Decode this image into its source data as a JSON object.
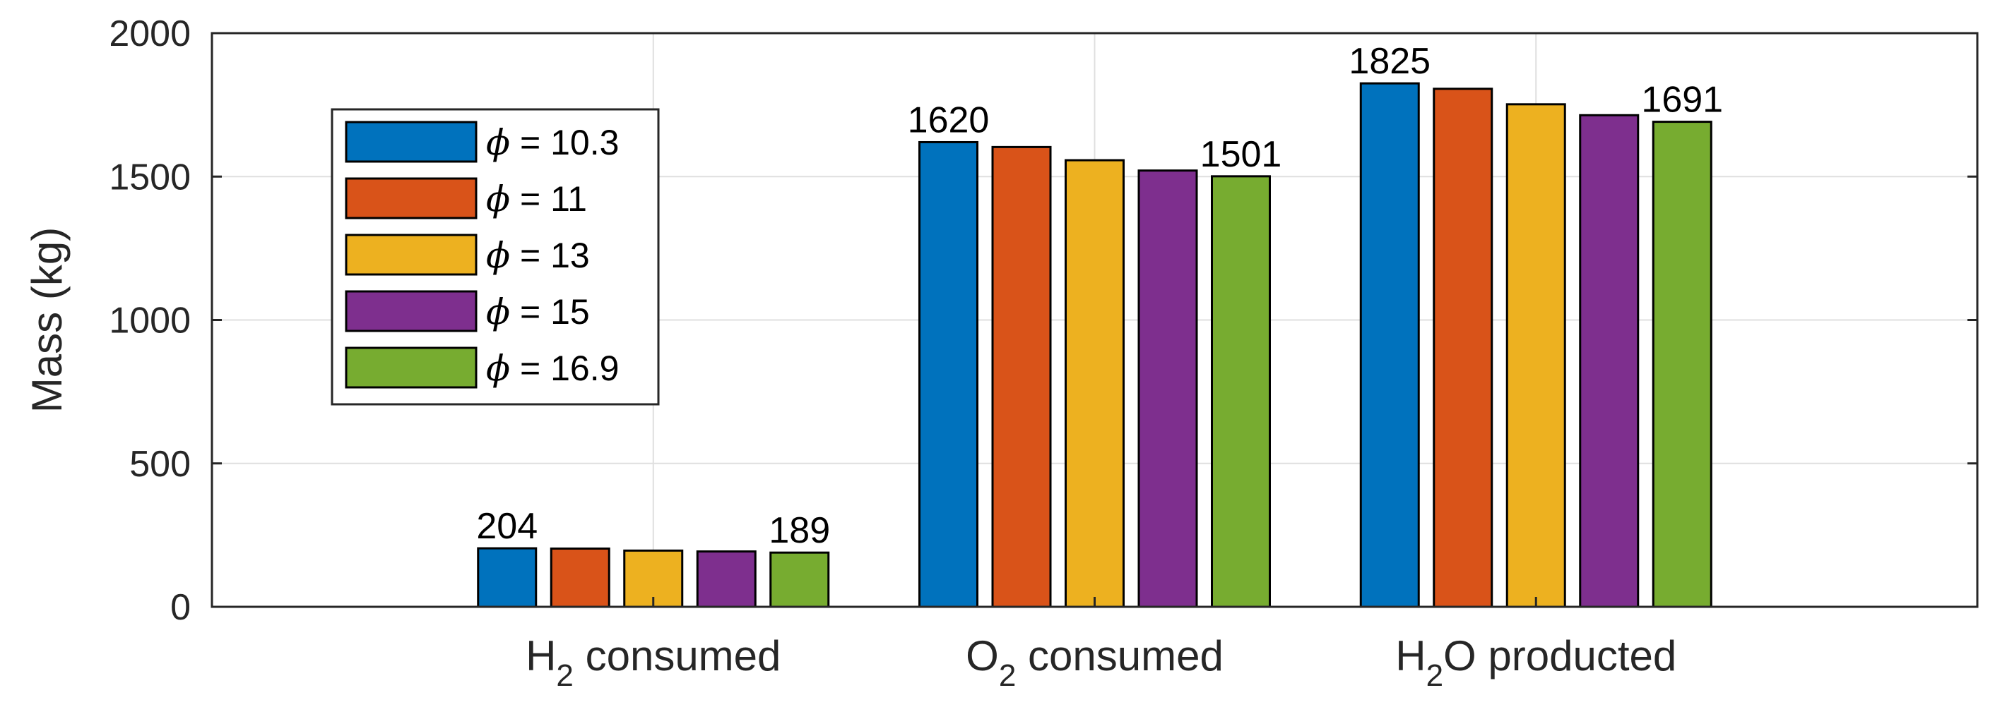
{
  "chart_data": {
    "type": "bar",
    "categories": [
      {
        "base": "H",
        "sub": "2",
        "rest": " consumed"
      },
      {
        "base": "O",
        "sub": "2",
        "rest": " consumed"
      },
      {
        "base": "H",
        "sub": "2",
        "rest": "O producted"
      }
    ],
    "series": [
      {
        "name": "ϕ = 10.3",
        "symbol": "ϕ",
        "label": " = 10.3",
        "color": "#0072BD",
        "values": [
          204,
          1620,
          1825
        ]
      },
      {
        "name": "ϕ = 11",
        "symbol": "ϕ",
        "label": " = 11",
        "color": "#D95319",
        "values": [
          203,
          1603,
          1806
        ]
      },
      {
        "name": "ϕ = 13",
        "symbol": "ϕ",
        "label": " = 13",
        "color": "#EDB120",
        "values": [
          196,
          1557,
          1752
        ]
      },
      {
        "name": "ϕ = 15",
        "symbol": "ϕ",
        "label": " = 15",
        "color": "#7E2F8E",
        "values": [
          193,
          1521,
          1714
        ]
      },
      {
        "name": "ϕ = 16.9",
        "symbol": "ϕ",
        "label": " = 16.9",
        "color": "#77AC30",
        "values": [
          189,
          1501,
          1691
        ]
      }
    ],
    "data_labels": [
      {
        "category": 0,
        "series": 0,
        "text": "204"
      },
      {
        "category": 0,
        "series": 4,
        "text": "189"
      },
      {
        "category": 1,
        "series": 0,
        "text": "1620"
      },
      {
        "category": 1,
        "series": 4,
        "text": "1501"
      },
      {
        "category": 2,
        "series": 0,
        "text": "1825"
      },
      {
        "category": 2,
        "series": 4,
        "text": "1691"
      }
    ],
    "title": "",
    "xlabel": "",
    "ylabel": "Mass (kg)",
    "ylim": [
      0,
      2000
    ],
    "yticks": [
      0,
      500,
      1000,
      1500,
      2000
    ],
    "grid": true,
    "legend_position": "top-left"
  }
}
